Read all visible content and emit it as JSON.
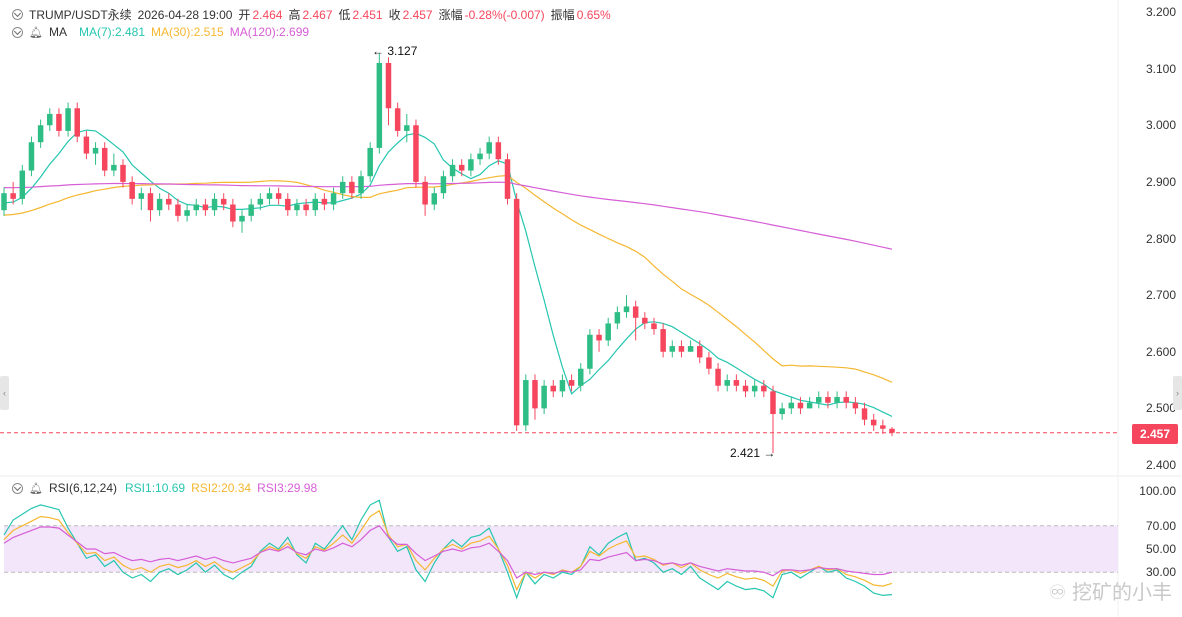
{
  "header": {
    "symbol": "TRUMP/USDT永续",
    "datetime": "2026-04-28 19:00",
    "open_label": "开",
    "open": "2.464",
    "high_label": "高",
    "high": "2.467",
    "low_label": "低",
    "low": "2.451",
    "close_label": "收",
    "close": "2.457",
    "change_label": "涨幅",
    "change": "-0.28%(-0.007)",
    "amplitude_label": "振幅",
    "amplitude": "0.65%"
  },
  "ma_legend": {
    "name": "MA",
    "ma7": "MA(7):2.481",
    "ma30": "MA(30):2.515",
    "ma120": "MA(120):2.699"
  },
  "rsi_legend": {
    "name": "RSI(6,12,24)",
    "rsi1": "RSI1:10.69",
    "rsi2": "RSI2:20.34",
    "rsi3": "RSI3:29.98"
  },
  "annotations": {
    "high_mark": "3.127",
    "low_mark": "2.421"
  },
  "current_price": "2.457",
  "watermark": "挖矿的小丰",
  "colors": {
    "up": "#2ebd85",
    "down": "#f6465d",
    "ma7": "#26c6b0",
    "ma30": "#f5b731",
    "ma120": "#d65ed6",
    "rsi_band": "#f3e6fb"
  },
  "chart_data": [
    {
      "type": "candlestick",
      "y_ticks": [
        "3.200",
        "3.100",
        "3.000",
        "2.900",
        "2.800",
        "2.700",
        "2.600",
        "2.500",
        "2.400"
      ],
      "ylim": [
        2.4,
        3.2
      ],
      "x_count": 124,
      "candles": [
        [
          2.85,
          2.88,
          2.84,
          2.89
        ],
        [
          2.88,
          2.87,
          2.86,
          2.9
        ],
        [
          2.87,
          2.92,
          2.86,
          2.93
        ],
        [
          2.92,
          2.97,
          2.91,
          2.98
        ],
        [
          2.97,
          3.0,
          2.96,
          3.01
        ],
        [
          3.0,
          3.02,
          2.99,
          3.03
        ],
        [
          3.02,
          2.99,
          2.98,
          3.03
        ],
        [
          2.99,
          3.03,
          2.98,
          3.04
        ],
        [
          3.03,
          2.98,
          2.97,
          3.04
        ],
        [
          2.98,
          2.95,
          2.94,
          2.99
        ],
        [
          2.95,
          2.96,
          2.93,
          2.97
        ],
        [
          2.96,
          2.92,
          2.91,
          2.97
        ],
        [
          2.92,
          2.93,
          2.91,
          2.95
        ],
        [
          2.93,
          2.9,
          2.89,
          2.94
        ],
        [
          2.9,
          2.87,
          2.86,
          2.91
        ],
        [
          2.87,
          2.88,
          2.85,
          2.89
        ],
        [
          2.88,
          2.85,
          2.83,
          2.89
        ],
        [
          2.85,
          2.87,
          2.84,
          2.88
        ],
        [
          2.87,
          2.86,
          2.85,
          2.88
        ],
        [
          2.86,
          2.84,
          2.83,
          2.87
        ],
        [
          2.84,
          2.85,
          2.83,
          2.86
        ],
        [
          2.85,
          2.86,
          2.84,
          2.87
        ],
        [
          2.86,
          2.85,
          2.84,
          2.87
        ],
        [
          2.85,
          2.87,
          2.84,
          2.88
        ],
        [
          2.87,
          2.86,
          2.85,
          2.88
        ],
        [
          2.86,
          2.83,
          2.82,
          2.87
        ],
        [
          2.83,
          2.84,
          2.81,
          2.85
        ],
        [
          2.84,
          2.86,
          2.83,
          2.87
        ],
        [
          2.86,
          2.87,
          2.85,
          2.88
        ],
        [
          2.87,
          2.88,
          2.86,
          2.89
        ],
        [
          2.88,
          2.87,
          2.86,
          2.89
        ],
        [
          2.87,
          2.85,
          2.84,
          2.88
        ],
        [
          2.85,
          2.86,
          2.84,
          2.87
        ],
        [
          2.86,
          2.85,
          2.84,
          2.87
        ],
        [
          2.85,
          2.87,
          2.84,
          2.88
        ],
        [
          2.87,
          2.86,
          2.85,
          2.88
        ],
        [
          2.86,
          2.88,
          2.85,
          2.89
        ],
        [
          2.88,
          2.9,
          2.87,
          2.91
        ],
        [
          2.9,
          2.88,
          2.87,
          2.91
        ],
        [
          2.88,
          2.91,
          2.87,
          2.92
        ],
        [
          2.91,
          2.96,
          2.9,
          2.97
        ],
        [
          2.96,
          3.11,
          2.95,
          3.127
        ],
        [
          3.11,
          3.03,
          3.0,
          3.12
        ],
        [
          3.03,
          2.99,
          2.98,
          3.04
        ],
        [
          2.99,
          3.0,
          2.97,
          3.02
        ],
        [
          3.0,
          2.9,
          2.89,
          3.01
        ],
        [
          2.9,
          2.86,
          2.84,
          2.91
        ],
        [
          2.86,
          2.88,
          2.85,
          2.89
        ],
        [
          2.88,
          2.91,
          2.87,
          2.92
        ],
        [
          2.91,
          2.93,
          2.9,
          2.94
        ],
        [
          2.93,
          2.92,
          2.91,
          2.94
        ],
        [
          2.92,
          2.94,
          2.91,
          2.95
        ],
        [
          2.94,
          2.95,
          2.93,
          2.96
        ],
        [
          2.95,
          2.97,
          2.94,
          2.98
        ],
        [
          2.97,
          2.94,
          2.93,
          2.98
        ],
        [
          2.94,
          2.87,
          2.86,
          2.95
        ],
        [
          2.87,
          2.47,
          2.46,
          2.88
        ],
        [
          2.47,
          2.55,
          2.46,
          2.56
        ],
        [
          2.55,
          2.5,
          2.48,
          2.56
        ],
        [
          2.5,
          2.54,
          2.49,
          2.55
        ],
        [
          2.54,
          2.53,
          2.52,
          2.55
        ],
        [
          2.53,
          2.55,
          2.52,
          2.56
        ],
        [
          2.55,
          2.54,
          2.53,
          2.56
        ],
        [
          2.54,
          2.57,
          2.53,
          2.58
        ],
        [
          2.57,
          2.63,
          2.56,
          2.64
        ],
        [
          2.63,
          2.62,
          2.6,
          2.64
        ],
        [
          2.62,
          2.65,
          2.61,
          2.66
        ],
        [
          2.65,
          2.67,
          2.64,
          2.68
        ],
        [
          2.67,
          2.68,
          2.66,
          2.7
        ],
        [
          2.68,
          2.66,
          2.62,
          2.69
        ],
        [
          2.66,
          2.65,
          2.64,
          2.67
        ],
        [
          2.65,
          2.64,
          2.63,
          2.66
        ],
        [
          2.64,
          2.6,
          2.59,
          2.65
        ],
        [
          2.6,
          2.61,
          2.59,
          2.62
        ],
        [
          2.61,
          2.6,
          2.59,
          2.62
        ],
        [
          2.6,
          2.61,
          2.6,
          2.62
        ],
        [
          2.61,
          2.59,
          2.58,
          2.62
        ],
        [
          2.59,
          2.57,
          2.56,
          2.6
        ],
        [
          2.57,
          2.54,
          2.53,
          2.58
        ],
        [
          2.54,
          2.55,
          2.53,
          2.56
        ],
        [
          2.55,
          2.54,
          2.53,
          2.56
        ],
        [
          2.54,
          2.53,
          2.52,
          2.55
        ],
        [
          2.53,
          2.54,
          2.52,
          2.55
        ],
        [
          2.54,
          2.53,
          2.52,
          2.55
        ],
        [
          2.53,
          2.49,
          2.421,
          2.54
        ],
        [
          2.49,
          2.5,
          2.48,
          2.51
        ],
        [
          2.5,
          2.51,
          2.49,
          2.52
        ],
        [
          2.51,
          2.5,
          2.49,
          2.52
        ],
        [
          2.5,
          2.51,
          2.5,
          2.52
        ],
        [
          2.51,
          2.52,
          2.5,
          2.53
        ],
        [
          2.52,
          2.51,
          2.5,
          2.53
        ],
        [
          2.51,
          2.52,
          2.5,
          2.53
        ],
        [
          2.52,
          2.51,
          2.5,
          2.53
        ],
        [
          2.51,
          2.5,
          2.49,
          2.52
        ],
        [
          2.5,
          2.48,
          2.47,
          2.51
        ],
        [
          2.48,
          2.47,
          2.46,
          2.49
        ],
        [
          2.47,
          2.464,
          2.455,
          2.48
        ],
        [
          2.464,
          2.457,
          2.451,
          2.467
        ]
      ]
    },
    {
      "type": "line",
      "y_ticks": [
        "100.00",
        "70.00",
        "50.00",
        "30.00"
      ],
      "ylim": [
        0,
        100
      ],
      "band": [
        30,
        70
      ],
      "series": [
        {
          "name": "RSI1",
          "values": [
            62,
            75,
            80,
            85,
            88,
            86,
            84,
            68,
            55,
            42,
            45,
            35,
            40,
            30,
            25,
            28,
            22,
            30,
            33,
            28,
            32,
            38,
            30,
            36,
            28,
            24,
            30,
            35,
            48,
            55,
            50,
            60,
            45,
            38,
            55,
            50,
            60,
            70,
            58,
            75,
            88,
            92,
            60,
            48,
            52,
            32,
            22,
            38,
            50,
            58,
            52,
            60,
            62,
            68,
            50,
            30,
            8,
            30,
            20,
            28,
            25,
            30,
            28,
            35,
            52,
            45,
            55,
            60,
            64,
            40,
            42,
            38,
            30,
            33,
            28,
            35,
            25,
            20,
            15,
            22,
            18,
            15,
            16,
            14,
            8,
            28,
            30,
            25,
            30,
            35,
            30,
            32,
            25,
            22,
            18,
            12,
            10,
            10.69
          ]
        },
        {
          "name": "RSI2",
          "values": [
            58,
            66,
            70,
            74,
            78,
            77,
            75,
            64,
            55,
            46,
            47,
            40,
            43,
            36,
            32,
            34,
            30,
            35,
            37,
            34,
            36,
            40,
            35,
            39,
            33,
            30,
            34,
            38,
            47,
            52,
            49,
            55,
            46,
            42,
            52,
            49,
            55,
            62,
            55,
            66,
            78,
            83,
            62,
            52,
            54,
            40,
            32,
            42,
            50,
            54,
            50,
            55,
            57,
            61,
            50,
            36,
            15,
            30,
            25,
            30,
            28,
            32,
            30,
            35,
            48,
            44,
            50,
            54,
            57,
            43,
            44,
            41,
            36,
            38,
            34,
            38,
            32,
            28,
            25,
            29,
            26,
            24,
            25,
            23,
            18,
            31,
            32,
            29,
            32,
            35,
            32,
            33,
            28,
            26,
            23,
            19,
            18,
            20.34
          ]
        },
        {
          "name": "RSI3",
          "values": [
            55,
            60,
            63,
            66,
            69,
            69,
            68,
            62,
            56,
            50,
            50,
            46,
            47,
            43,
            40,
            41,
            39,
            41,
            42,
            40,
            42,
            44,
            41,
            43,
            40,
            38,
            40,
            42,
            47,
            50,
            48,
            52,
            47,
            45,
            50,
            48,
            51,
            55,
            52,
            58,
            66,
            70,
            60,
            54,
            54,
            46,
            40,
            44,
            48,
            50,
            48,
            51,
            52,
            55,
            48,
            40,
            25,
            30,
            28,
            30,
            29,
            31,
            30,
            32,
            41,
            40,
            43,
            45,
            47,
            40,
            41,
            40,
            37,
            38,
            36,
            38,
            35,
            33,
            31,
            33,
            32,
            31,
            31,
            30,
            27,
            32,
            32,
            31,
            32,
            34,
            33,
            33,
            31,
            30,
            29,
            28,
            28,
            29.98
          ]
        }
      ]
    }
  ]
}
